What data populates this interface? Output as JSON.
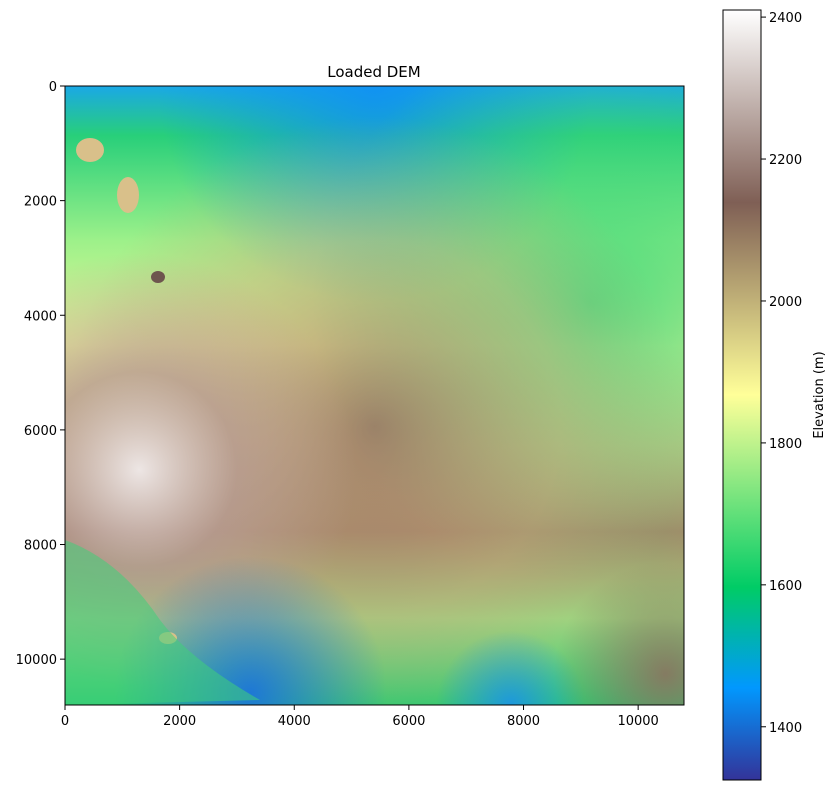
{
  "chart_data": {
    "type": "heatmap",
    "title": "Loaded DEM",
    "xlabel": "",
    "ylabel": "",
    "xlim": [
      0,
      10800
    ],
    "ylim": [
      10800,
      0
    ],
    "x_ticks": [
      0,
      2000,
      4000,
      6000,
      8000,
      10000
    ],
    "y_ticks": [
      0,
      2000,
      4000,
      6000,
      8000,
      10000
    ],
    "x_tick_labels": [
      "0",
      "2000",
      "4000",
      "6000",
      "8000",
      "10000"
    ],
    "y_tick_labels": [
      "0",
      "2000",
      "4000",
      "6000",
      "8000",
      "10000"
    ],
    "colormap": "terrain",
    "colorbar": {
      "label": "Elevation (m)",
      "range": [
        1325,
        2410
      ],
      "ticks": [
        1400,
        1600,
        1800,
        2000,
        2200,
        2400
      ],
      "tick_labels": [
        "1400",
        "1600",
        "1800",
        "2000",
        "2200",
        "2400"
      ],
      "stops": [
        "#333399",
        "#0198fe",
        "#00cc66",
        "#ffff99",
        "#7f5f55",
        "#ffffff"
      ]
    },
    "grid": false
  }
}
